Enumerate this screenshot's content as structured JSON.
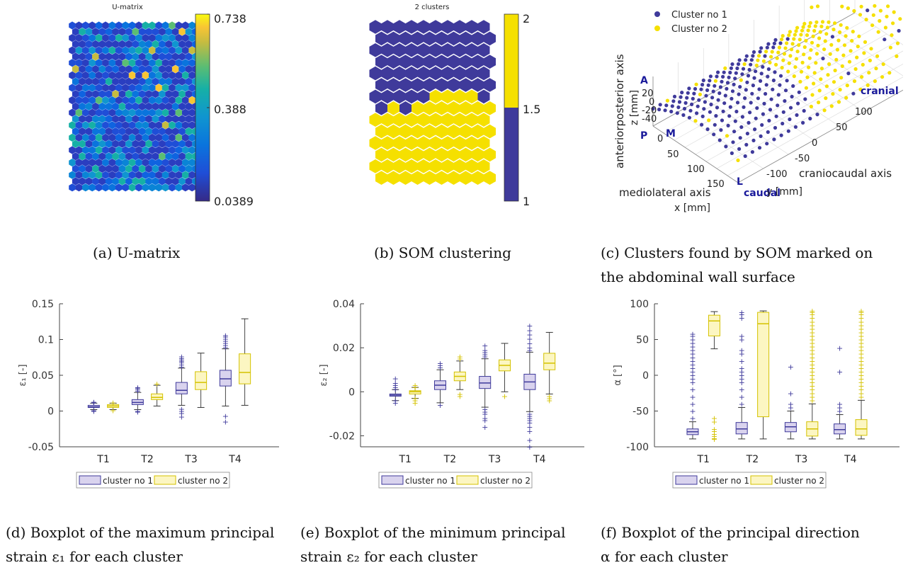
{
  "captions": {
    "a": "(a) U-matrix",
    "b": "(b) SOM clustering",
    "c_line1": "(c) Clusters found by SOM marked on",
    "c_line2": "the abdominal wall surface",
    "d_line1": "(d) Boxplot of the maximum principal",
    "d_line2": "strain ε₁ for each cluster",
    "e_line1": "(e) Boxplot of the minimum principal",
    "e_line2": "strain ε₂ for each cluster",
    "f_line1": "(f) Boxplot of the principal direction",
    "f_line2": "α for each cluster"
  },
  "colors": {
    "cluster1": "#3f3a9b",
    "cluster2": "#f5e000",
    "cluster1_fill": "#d9d3ee",
    "cluster2_fill": "#fcf6c2"
  },
  "chart_data": [
    {
      "id": "umatrix",
      "type": "heatmap",
      "title": "U-matrix",
      "colorbar_ticks": [
        "0.738",
        "0.388",
        "0.0389"
      ],
      "colorbar_range": [
        0.0389,
        0.738
      ]
    },
    {
      "id": "som",
      "type": "heatmap",
      "title": "2 clusters",
      "colorbar_ticks": [
        "2",
        "1.5",
        "1"
      ],
      "colorbar_range": [
        1,
        2
      ]
    },
    {
      "id": "surface",
      "type": "scatter",
      "legend": [
        "Cluster no 1",
        "Cluster no 2"
      ],
      "zlabel_1": "anteriorposterior axis",
      "zlabel_2": "z [mm]",
      "xlabel_1": "mediolateral axis",
      "xlabel_2": "x [mm]",
      "ylabel_1": "craniocaudal axis",
      "ylabel_2": "y [mm]",
      "z_ticks": [
        "20",
        "0",
        "-20",
        "-40"
      ],
      "x_ticks": [
        "0",
        "50",
        "100",
        "150"
      ],
      "y_ticks": [
        "-100",
        "-50",
        "0",
        "50",
        "100"
      ],
      "orientation_labels": {
        "A": "A",
        "P": "P",
        "M": "M",
        "L": "L",
        "cranial": "cranial",
        "caudal": "caudal"
      }
    },
    {
      "id": "eps1",
      "type": "box",
      "ylabel": "ε₁ [-]",
      "ylim": [
        -0.05,
        0.15
      ],
      "yticks": [
        -0.05,
        0,
        0.05,
        0.1,
        0.15
      ],
      "yticklabels": [
        "-0.05",
        "0",
        "0.05",
        "0.1",
        "0.15"
      ],
      "categories": [
        "T1",
        "T2",
        "T3",
        "T4"
      ],
      "legend": [
        "cluster no 1",
        "cluster no 2"
      ],
      "series": [
        {
          "name": "cluster no 1",
          "boxes": [
            {
              "q1": 0.005,
              "median": 0.006,
              "q3": 0.008,
              "lo": 0.002,
              "hi": 0.011,
              "outliers": [
                0.0,
                0.001,
                0.012,
                0.013
              ]
            },
            {
              "q1": 0.009,
              "median": 0.012,
              "q3": 0.016,
              "lo": 0.002,
              "hi": 0.026,
              "outliers": [
                -0.001,
                0.0,
                0.028,
                0.03,
                0.032,
                0.033
              ]
            },
            {
              "q1": 0.024,
              "median": 0.029,
              "q3": 0.04,
              "lo": 0.008,
              "hi": 0.06,
              "outliers": [
                -0.008,
                -0.003,
                0.0,
                0.003,
                0.062,
                0.065,
                0.068,
                0.07,
                0.072,
                0.074,
                0.076
              ]
            },
            {
              "q1": 0.035,
              "median": 0.045,
              "q3": 0.057,
              "lo": 0.007,
              "hi": 0.087,
              "outliers": [
                -0.015,
                -0.007,
                0.089,
                0.092,
                0.095,
                0.098,
                0.101,
                0.104,
                0.106
              ]
            }
          ]
        },
        {
          "name": "cluster no 2",
          "boxes": [
            {
              "q1": 0.005,
              "median": 0.007,
              "q3": 0.009,
              "lo": 0.002,
              "hi": 0.011,
              "outliers": [
                0.001,
                0.012
              ]
            },
            {
              "q1": 0.016,
              "median": 0.019,
              "q3": 0.024,
              "lo": 0.007,
              "hi": 0.036,
              "outliers": [
                0.038
              ]
            },
            {
              "q1": 0.03,
              "median": 0.04,
              "q3": 0.055,
              "lo": 0.005,
              "hi": 0.081,
              "outliers": []
            },
            {
              "q1": 0.038,
              "median": 0.054,
              "q3": 0.08,
              "lo": 0.008,
              "hi": 0.129,
              "outliers": []
            }
          ]
        }
      ]
    },
    {
      "id": "eps2",
      "type": "box",
      "ylabel": "ε₂ [-]",
      "ylim": [
        -0.025,
        0.04
      ],
      "yticks": [
        -0.02,
        0,
        0.02,
        0.04
      ],
      "yticklabels": [
        "-0.02",
        "0",
        "0.02",
        "0.04"
      ],
      "categories": [
        "T1",
        "T2",
        "T3",
        "T4"
      ],
      "legend": [
        "cluster no 1",
        "cluster no 2"
      ],
      "series": [
        {
          "name": "cluster no 1",
          "boxes": [
            {
              "q1": -0.002,
              "median": -0.0015,
              "q3": -0.001,
              "lo": -0.004,
              "hi": 0.001,
              "outliers": [
                -0.005,
                -0.004,
                0.001,
                0.002,
                0.003,
                0.004,
                0.006
              ]
            },
            {
              "q1": 0.001,
              "median": 0.003,
              "q3": 0.005,
              "lo": -0.005,
              "hi": 0.01,
              "outliers": [
                -0.006,
                0.011,
                0.012,
                0.013
              ]
            },
            {
              "q1": 0.0015,
              "median": 0.004,
              "q3": 0.007,
              "lo": -0.007,
              "hi": 0.015,
              "outliers": [
                -0.008,
                -0.009,
                -0.01,
                -0.012,
                -0.013,
                -0.016,
                0.016,
                0.017,
                0.018,
                0.019,
                0.021
              ]
            },
            {
              "q1": 0.001,
              "median": 0.0045,
              "q3": 0.008,
              "lo": -0.009,
              "hi": 0.018,
              "outliers": [
                -0.01,
                -0.011,
                -0.012,
                -0.013,
                -0.014,
                -0.016,
                -0.018,
                -0.022,
                -0.025,
                0.019,
                0.02,
                0.022,
                0.024,
                0.026,
                0.028,
                0.03
              ]
            }
          ]
        },
        {
          "name": "cluster no 2",
          "boxes": [
            {
              "q1": -0.001,
              "median": 0.0,
              "q3": 0.0005,
              "lo": -0.003,
              "hi": 0.002,
              "outliers": [
                -0.005,
                -0.004,
                -0.003,
                0.002,
                0.003
              ]
            },
            {
              "q1": 0.005,
              "median": 0.007,
              "q3": 0.009,
              "lo": 0.001,
              "hi": 0.014,
              "outliers": [
                -0.001,
                -0.002,
                0.015,
                0.016
              ]
            },
            {
              "q1": 0.0095,
              "median": 0.012,
              "q3": 0.0145,
              "lo": 0.0,
              "hi": 0.022,
              "outliers": [
                -0.002
              ]
            },
            {
              "q1": 0.01,
              "median": 0.013,
              "q3": 0.0175,
              "lo": -0.001,
              "hi": 0.027,
              "outliers": [
                -0.002,
                -0.003,
                -0.004
              ]
            }
          ]
        }
      ]
    },
    {
      "id": "alpha",
      "type": "box",
      "ylabel": "α [°]",
      "ylim": [
        -100,
        100
      ],
      "yticks": [
        -100,
        -50,
        0,
        50,
        100
      ],
      "yticklabels": [
        "-100",
        "-50",
        "0",
        "50",
        "100"
      ],
      "categories": [
        "T1",
        "T2",
        "T3",
        "T4"
      ],
      "legend": [
        "cluster no 1",
        "cluster no 2"
      ],
      "series": [
        {
          "name": "cluster no 1",
          "boxes": [
            {
              "q1": -83,
              "median": -79,
              "q3": -75,
              "lo": -89,
              "hi": -65,
              "outliers": [
                -60,
                -50,
                -40,
                -30,
                -20,
                -10,
                -5,
                0,
                5,
                10,
                15,
                20,
                25,
                30,
                35,
                40,
                45,
                50,
                55,
                58
              ]
            },
            {
              "q1": -82,
              "median": -75,
              "q3": -66,
              "lo": -89,
              "hi": -45,
              "outliers": [
                -40,
                -30,
                -20,
                -10,
                -5,
                0,
                5,
                10,
                20,
                30,
                35,
                50,
                55,
                80,
                85,
                88
              ]
            },
            {
              "q1": -79,
              "median": -72,
              "q3": -66,
              "lo": -89,
              "hi": -50,
              "outliers": [
                -45,
                -40,
                -25,
                12
              ]
            },
            {
              "q1": -82,
              "median": -76,
              "q3": -68,
              "lo": -89,
              "hi": -55,
              "outliers": [
                -50,
                -45,
                -40,
                5,
                38
              ]
            }
          ]
        },
        {
          "name": "cluster no 2",
          "boxes": [
            {
              "q1": 55,
              "median": 76,
              "q3": 84,
              "lo": 37,
              "hi": 89,
              "outliers": [
                -60,
                -65,
                -75,
                -78,
                -82,
                -85,
                -88,
                -89
              ]
            },
            {
              "q1": -58,
              "median": 72,
              "q3": 88,
              "lo": -89,
              "hi": 90,
              "outliers": []
            },
            {
              "q1": -85,
              "median": -75,
              "q3": -65,
              "lo": -89,
              "hi": -40,
              "outliers": [
                -35,
                -30,
                -25,
                -20,
                -15,
                -10,
                -5,
                0,
                5,
                10,
                15,
                20,
                25,
                30,
                35,
                40,
                45,
                50,
                55,
                60,
                65,
                70,
                75,
                80,
                85,
                88,
                90
              ]
            },
            {
              "q1": -84,
              "median": -75,
              "q3": -62,
              "lo": -89,
              "hi": -35,
              "outliers": [
                -30,
                -25,
                -20,
                -15,
                -10,
                -5,
                0,
                5,
                10,
                15,
                20,
                25,
                30,
                35,
                40,
                45,
                50,
                55,
                60,
                65,
                70,
                75,
                80,
                85,
                88,
                90
              ]
            }
          ]
        }
      ]
    }
  ]
}
